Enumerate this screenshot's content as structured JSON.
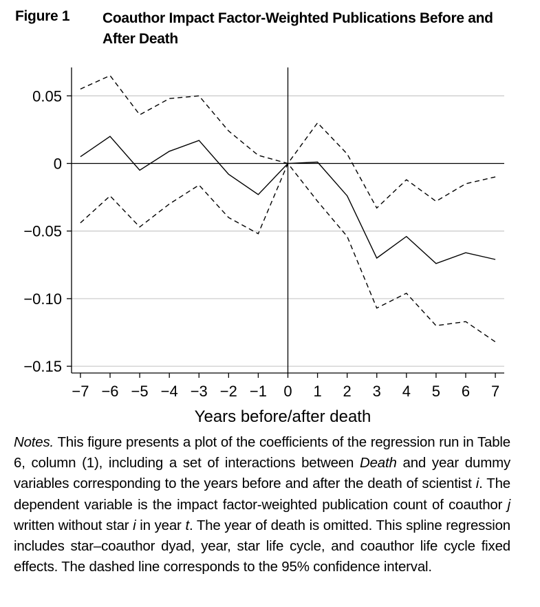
{
  "figure": {
    "label": "Figure 1",
    "title": "Coauthor Impact Factor-Weighted Publications Before and After Death"
  },
  "chart_data": {
    "type": "line",
    "title": "",
    "xlabel": "Years before/after death",
    "ylabel": "",
    "x": [
      -7,
      -6,
      -5,
      -4,
      -3,
      -2,
      -1,
      0,
      1,
      2,
      3,
      4,
      5,
      6,
      7
    ],
    "x_tick_labels": [
      "−7",
      "−6",
      "−5",
      "−4",
      "−3",
      "−2",
      "−1",
      "0",
      "1",
      "2",
      "3",
      "4",
      "5",
      "6",
      "7"
    ],
    "y_ticks": [
      0.05,
      0,
      -0.05,
      -0.1,
      -0.15
    ],
    "y_tick_labels": [
      "0.05",
      "0",
      "−0.05",
      "−0.10",
      "−0.15"
    ],
    "xlim": [
      -7.3,
      7.3
    ],
    "ylim": [
      -0.155,
      0.071
    ],
    "grid": "horizontal",
    "series": [
      {
        "style": "solid",
        "values": [
          0.005,
          0.02,
          -0.005,
          0.009,
          0.017,
          -0.008,
          -0.023,
          0.0,
          0.001,
          -0.024,
          -0.07,
          -0.054,
          -0.074,
          -0.066,
          -0.071
        ]
      },
      {
        "style": "dashed",
        "values": [
          0.055,
          0.065,
          0.036,
          0.048,
          0.05,
          0.024,
          0.006,
          0.0,
          0.03,
          0.007,
          -0.033,
          -0.012,
          -0.028,
          -0.015,
          -0.01
        ]
      },
      {
        "style": "dashed",
        "values": [
          -0.044,
          -0.024,
          -0.047,
          -0.03,
          -0.016,
          -0.04,
          -0.052,
          0.0,
          -0.028,
          -0.054,
          -0.107,
          -0.096,
          -0.12,
          -0.117,
          -0.132
        ]
      }
    ]
  },
  "notes": {
    "label": "Notes.",
    "p1": " This figure presents a plot of the coefficients of the regression run in Table 6, column (1), including a set of interactions between ",
    "death": "Death",
    "p2": " and year dummy variables corresponding to the years before and after the death of scientist ",
    "i1": "i",
    "p3": ". The dependent variable is the impact factor-weighted publication count of coauthor ",
    "j": "j",
    "p4": " written without star ",
    "i2": "i",
    "p5": " in year ",
    "t": "t",
    "p6": ". The year of death is omitted. This spline regression includes star–coauthor dyad, year, star life cycle, and coauthor life cycle fixed effects. The dashed line corresponds to the 95% confidence interval."
  }
}
